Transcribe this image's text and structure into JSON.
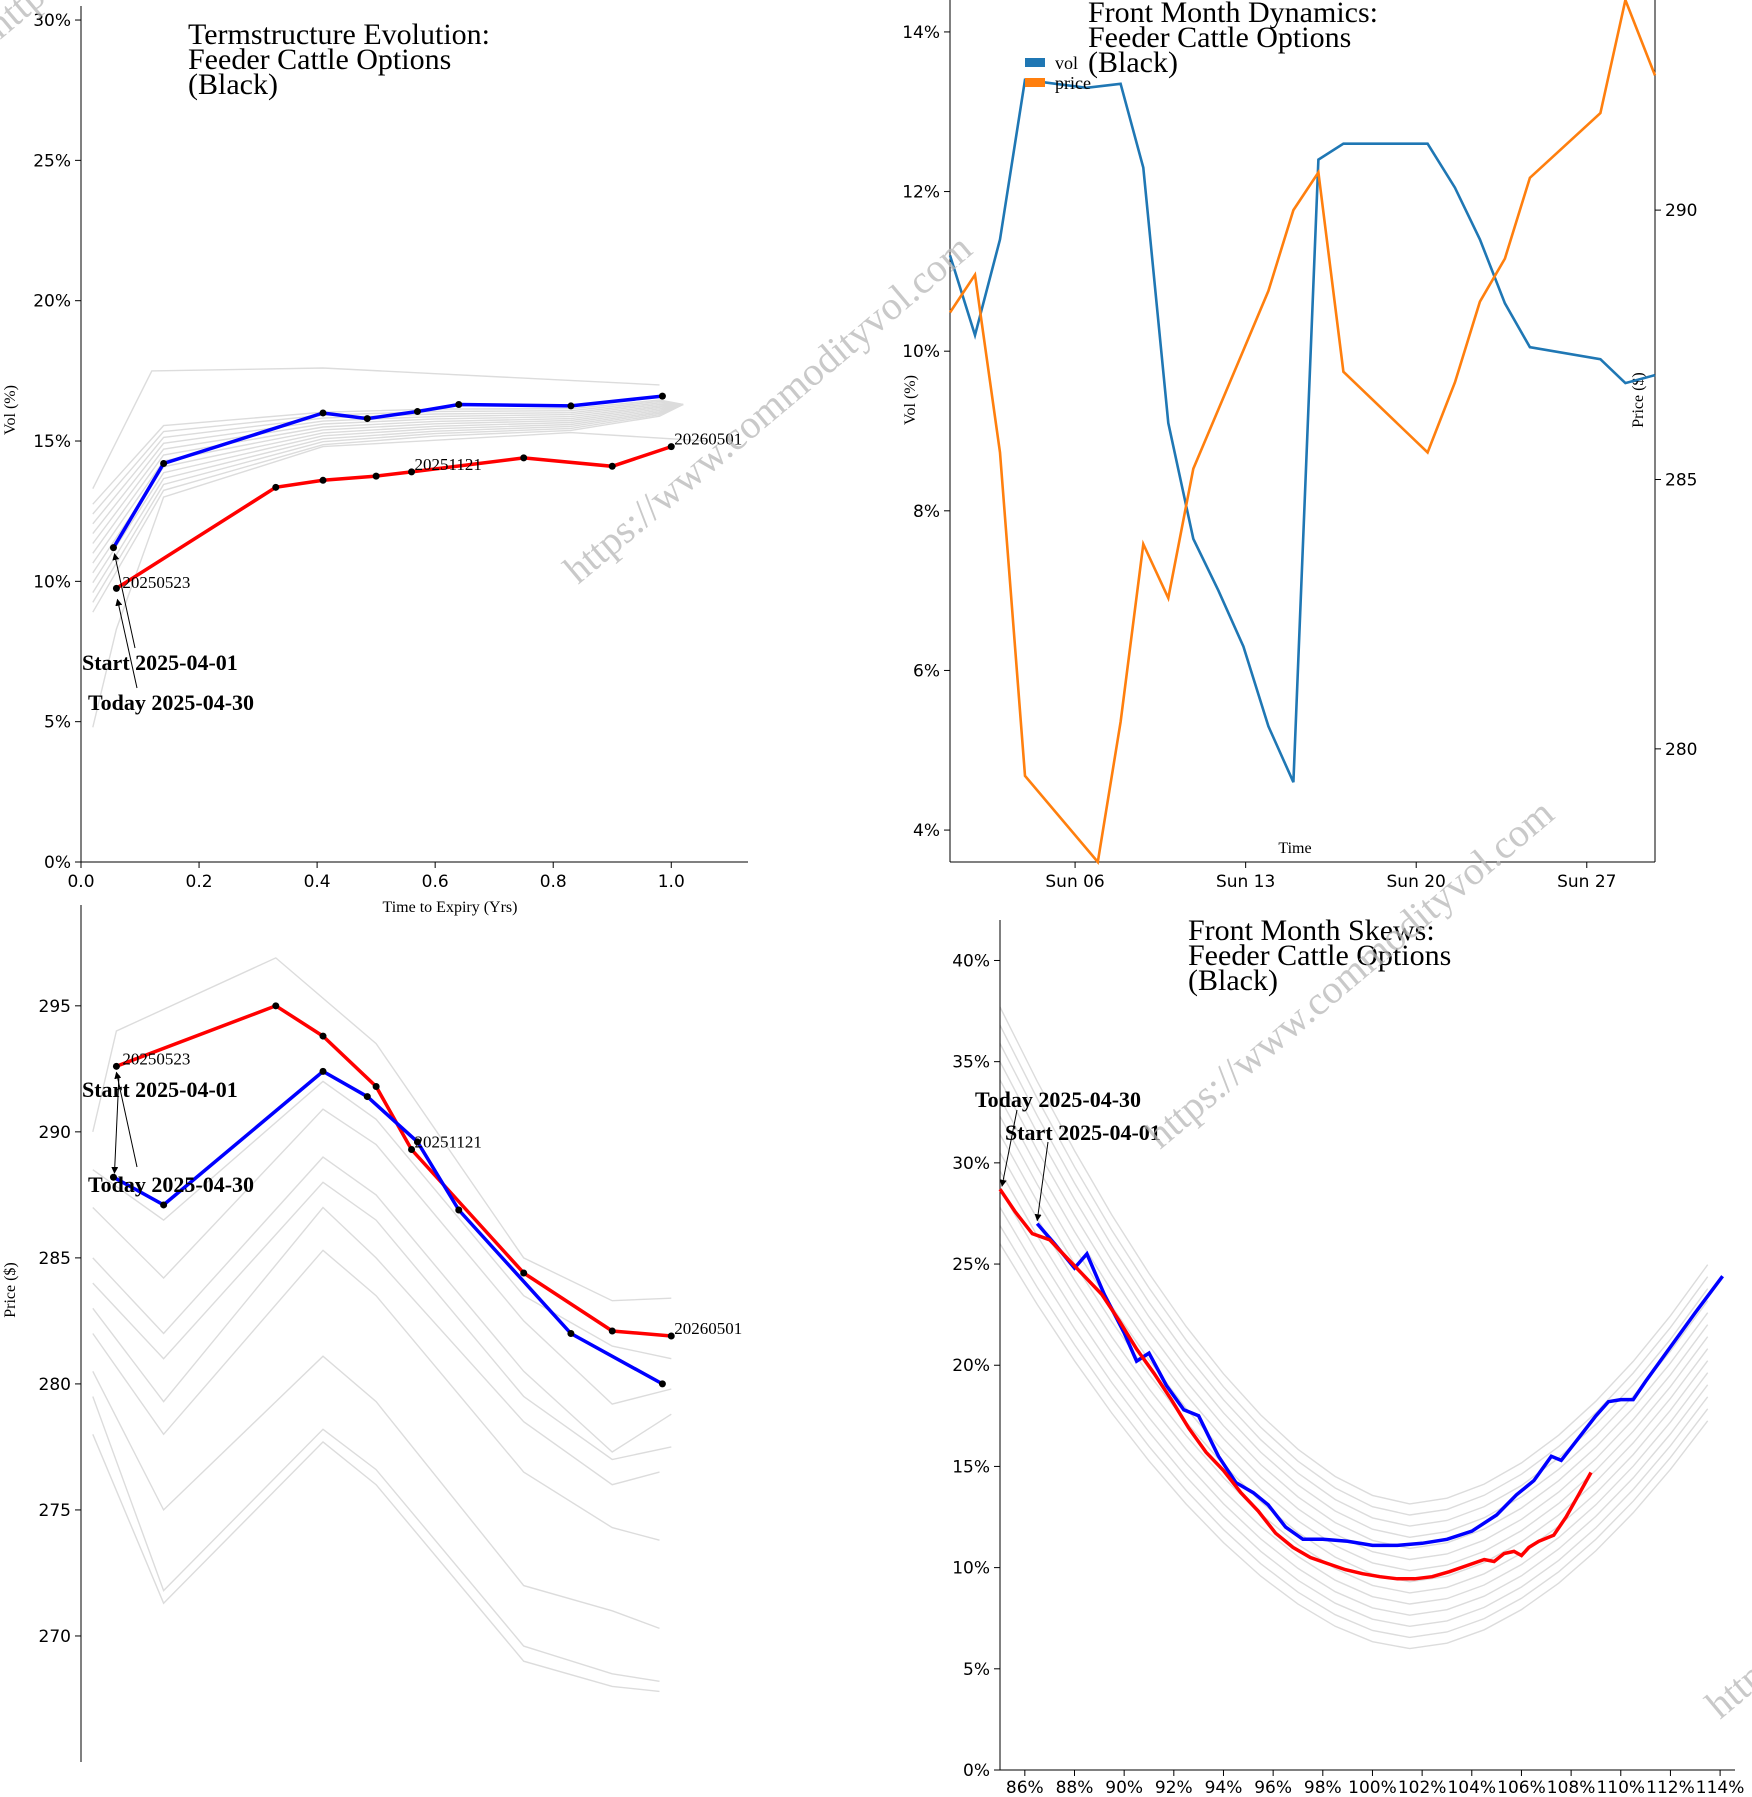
{
  "watermark": "https://www.commodityvol.com",
  "chart_data": [
    {
      "id": "termstructure",
      "type": "line",
      "title_lines": [
        "Termstructure Evolution:",
        "Feeder Cattle Options",
        "(Black)"
      ],
      "xlabel": "Time to Expiry (Yrs)",
      "ylabel": "Vol (%)",
      "xlim": [
        0,
        1.13
      ],
      "ylim": [
        0,
        30.5
      ],
      "xticks": [
        0.0,
        0.2,
        0.4,
        0.6,
        0.8,
        1.0
      ],
      "xtick_labels": [
        "0.0",
        "0.2",
        "0.4",
        "0.6",
        "0.8",
        "1.0"
      ],
      "yticks": [
        0,
        5,
        10,
        15,
        20,
        25,
        30
      ],
      "ytick_labels": [
        "0%",
        "5%",
        "10%",
        "15%",
        "20%",
        "25%",
        "30%"
      ],
      "series": [
        {
          "color": "#0000ff",
          "x": [
            0.055,
            0.14,
            0.41,
            0.485,
            0.57,
            0.64,
            0.83,
            0.985
          ],
          "y": [
            11.2,
            14.2,
            16.0,
            15.8,
            16.05,
            16.3,
            16.25,
            16.6
          ]
        },
        {
          "color": "#ff0000",
          "x": [
            0.06,
            0.33,
            0.41,
            0.5,
            0.56,
            0.75,
            0.9,
            1.0
          ],
          "y": [
            9.75,
            13.35,
            13.6,
            13.75,
            13.9,
            14.4,
            14.1,
            14.8
          ]
        }
      ],
      "point_labels": [
        {
          "text": "20250523",
          "x": 0.065,
          "y": 9.7
        },
        {
          "text": "20251121",
          "x": 0.56,
          "y": 13.9
        },
        {
          "text": "20260501",
          "x": 1.0,
          "y": 14.8
        }
      ],
      "annotations": [
        {
          "text": "Start 2025-04-01",
          "x": 0.055,
          "y": 11.2
        },
        {
          "text": "Today 2025-04-30",
          "x": 0.06,
          "y": 9.5
        }
      ]
    },
    {
      "id": "front_month_dynamics",
      "type": "line",
      "title_lines": [
        "Front Month Dynamics:",
        "Feeder Cattle Options",
        "(Black)"
      ],
      "xlabel": "Time",
      "ylabel": "Vol (%)",
      "y2label": "Price ($)",
      "xlim": [
        0,
        31
      ],
      "ylim": [
        3.6,
        14.4
      ],
      "y2lim": [
        277.9,
        293.9
      ],
      "xtick_positions": [
        5.5,
        13,
        20.5,
        28
      ],
      "xtick_labels": [
        "Sun 06",
        "Sun 13",
        "Sun 20",
        "Sun 27"
      ],
      "yticks": [
        4,
        6,
        8,
        10,
        12,
        14
      ],
      "ytick_labels": [
        "4%",
        "6%",
        "8%",
        "10%",
        "12%",
        "14%"
      ],
      "y2ticks": [
        280,
        285,
        290
      ],
      "y2tick_labels": [
        "280",
        "285",
        "290"
      ],
      "legend": [
        {
          "label": "vol",
          "color": "#1f77b4"
        },
        {
          "label": "price",
          "color": "#ff7f0e"
        }
      ],
      "series": [
        {
          "name": "vol",
          "color": "#1f77b4",
          "axis": "left",
          "x": [
            0,
            1.1,
            2.2,
            3.3,
            6.0,
            7.5,
            8.5,
            9.6,
            10.7,
            11.8,
            12.9,
            14.0,
            15.1,
            16.2,
            17.3,
            18.4,
            21.0,
            22.2,
            23.3,
            24.4,
            25.5,
            28.6,
            29.7,
            31
          ],
          "y": [
            11.2,
            10.2,
            11.4,
            13.4,
            13.3,
            13.35,
            12.3,
            9.1,
            7.65,
            7.0,
            6.3,
            5.3,
            4.6,
            12.4,
            12.6,
            12.6,
            12.6,
            12.05,
            11.4,
            10.6,
            10.05,
            9.9,
            9.6,
            9.7
          ]
        },
        {
          "name": "price",
          "color": "#ff7f0e",
          "axis": "right",
          "x": [
            0,
            1.1,
            2.2,
            3.3,
            6.5,
            7.5,
            8.5,
            9.6,
            10.7,
            11.8,
            12.9,
            14.0,
            15.1,
            16.2,
            17.3,
            21.0,
            22.2,
            23.3,
            24.4,
            25.5,
            28.6,
            29.7,
            31
          ],
          "y": [
            288.1,
            288.8,
            285.5,
            279.5,
            277.9,
            280.5,
            283.8,
            282.8,
            285.2,
            286.3,
            287.4,
            288.5,
            290.0,
            290.7,
            287.0,
            285.5,
            286.8,
            288.3,
            289.1,
            290.6,
            291.8,
            293.9,
            292.5
          ]
        }
      ]
    },
    {
      "id": "term_prices",
      "type": "line",
      "xlabel": "",
      "ylabel": "Price ($)",
      "xlim": [
        0,
        1.13
      ],
      "ylim": [
        265,
        299
      ],
      "yticks": [
        270,
        275,
        280,
        285,
        290,
        295
      ],
      "ytick_labels": [
        "270",
        "275",
        "280",
        "285",
        "290",
        "295"
      ],
      "series": [
        {
          "color": "#ff0000",
          "x": [
            0.06,
            0.33,
            0.41,
            0.5,
            0.56,
            0.75,
            0.9,
            1.0
          ],
          "y": [
            292.6,
            295.0,
            293.8,
            291.8,
            289.3,
            284.4,
            282.1,
            281.9
          ]
        },
        {
          "color": "#0000ff",
          "x": [
            0.055,
            0.14,
            0.41,
            0.485,
            0.57,
            0.64,
            0.83,
            0.985
          ],
          "y": [
            288.2,
            287.1,
            292.4,
            291.4,
            289.6,
            286.9,
            282.0,
            280.0
          ]
        }
      ],
      "point_labels": [
        {
          "text": "20250523",
          "x": 0.065,
          "y": 292.6
        },
        {
          "text": "20251121",
          "x": 0.56,
          "y": 289.3
        },
        {
          "text": "20260501",
          "x": 1.0,
          "y": 281.9
        }
      ],
      "annotations": [
        {
          "text": "Start 2025-04-01",
          "x": 0.06,
          "y": 292.6
        },
        {
          "text": "Today 2025-04-30",
          "x": 0.055,
          "y": 288.2
        }
      ]
    },
    {
      "id": "front_month_skews",
      "type": "line",
      "title_lines": [
        "Front Month Skews:",
        "Feeder Cattle Options",
        "(Black)"
      ],
      "xlabel": "",
      "ylabel": "",
      "xlim": [
        85,
        114.6
      ],
      "ylim": [
        0,
        42
      ],
      "xticks": [
        86,
        88,
        90,
        92,
        94,
        96,
        98,
        100,
        102,
        104,
        106,
        108,
        110,
        112,
        114
      ],
      "xtick_labels": [
        "86%",
        "88%",
        "90%",
        "92%",
        "94%",
        "96%",
        "98%",
        "100%",
        "102%",
        "104%",
        "106%",
        "108%",
        "110%",
        "112%",
        "114%"
      ],
      "yticks": [
        0,
        5,
        10,
        15,
        20,
        25,
        30,
        35,
        40
      ],
      "ytick_labels": [
        "0%",
        "5%",
        "10%",
        "15%",
        "20%",
        "25%",
        "30%",
        "35%",
        "40%"
      ],
      "series": [
        {
          "color": "#0000ff",
          "x": [
            86.5,
            87.2,
            88.0,
            88.5,
            89.2,
            90.0,
            90.5,
            91.0,
            91.7,
            92.4,
            93.0,
            93.8,
            94.5,
            95.2,
            95.8,
            96.5,
            97.2,
            98.0,
            99.0,
            100.0,
            101.0,
            102.0,
            103.0,
            104.0,
            105.0,
            105.8,
            106.5,
            107.2,
            107.6,
            108.3,
            109.0,
            109.5,
            110.0,
            110.5,
            111.0,
            112.0,
            113.0,
            114.1
          ],
          "y": [
            27.0,
            26.0,
            24.8,
            25.5,
            23.5,
            21.6,
            20.2,
            20.6,
            19.0,
            17.8,
            17.5,
            15.5,
            14.2,
            13.7,
            13.1,
            12.0,
            11.4,
            11.4,
            11.3,
            11.1,
            11.1,
            11.2,
            11.4,
            11.8,
            12.6,
            13.6,
            14.3,
            15.5,
            15.3,
            16.4,
            17.5,
            18.2,
            18.3,
            18.3,
            19.2,
            20.9,
            22.6,
            24.4
          ]
        },
        {
          "color": "#ff0000",
          "x": [
            85.0,
            85.6,
            86.3,
            87.0,
            87.7,
            88.4,
            89.1,
            89.8,
            90.5,
            91.2,
            91.9,
            92.6,
            93.3,
            94.0,
            94.7,
            95.4,
            96.1,
            96.8,
            97.5,
            98.2,
            98.9,
            99.6,
            100.3,
            101.0,
            101.7,
            102.4,
            103.1,
            103.8,
            104.5,
            104.9,
            105.3,
            105.7,
            106.0,
            106.3,
            106.7,
            107.3,
            107.8,
            108.3,
            108.8
          ],
          "y": [
            28.7,
            27.6,
            26.5,
            26.2,
            25.3,
            24.4,
            23.5,
            22.2,
            20.8,
            19.6,
            18.3,
            16.9,
            15.7,
            14.8,
            13.7,
            12.8,
            11.7,
            11.0,
            10.5,
            10.2,
            9.9,
            9.7,
            9.55,
            9.45,
            9.45,
            9.55,
            9.8,
            10.1,
            10.4,
            10.3,
            10.7,
            10.8,
            10.6,
            11.0,
            11.3,
            11.6,
            12.5,
            13.6,
            14.7
          ]
        }
      ],
      "annotations": [
        {
          "text": "Today 2025-04-30",
          "x": 85.0,
          "y": 28.7
        },
        {
          "text": "Start 2025-04-01",
          "x": 86.5,
          "y": 27.0
        }
      ]
    }
  ]
}
